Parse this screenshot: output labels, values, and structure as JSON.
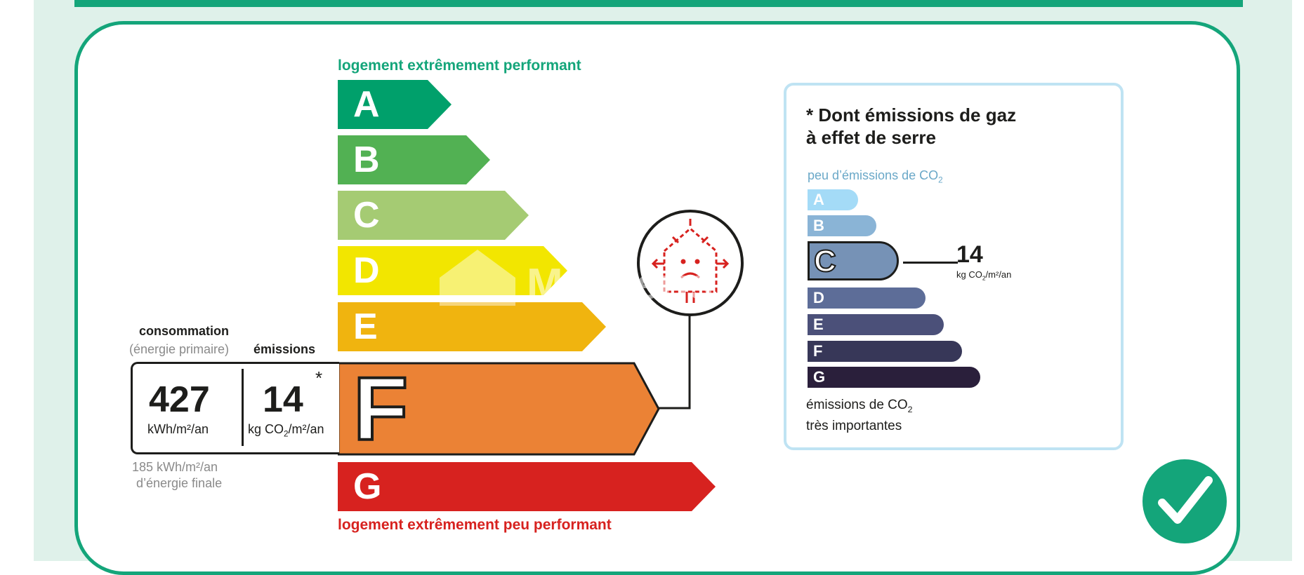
{
  "dpe": {
    "top_caption": "logement extrêmement performant",
    "bottom_caption": "logement extrêmement peu performant",
    "classes": [
      {
        "letter": "A",
        "color": "#00a06b"
      },
      {
        "letter": "B",
        "color": "#52b153"
      },
      {
        "letter": "C",
        "color": "#a5cb73"
      },
      {
        "letter": "D",
        "color": "#f2e600"
      },
      {
        "letter": "E",
        "color": "#f0b40f"
      },
      {
        "letter": "F",
        "color": "#eb8235"
      },
      {
        "letter": "G",
        "color": "#d7221f"
      }
    ],
    "current_class": "F",
    "indicator_icon": "sad-house-icon"
  },
  "consumption": {
    "label": "consommation",
    "sublabel": "(énergie primaire)",
    "value": "427",
    "unit": "kWh/m²/an",
    "final_energy_line1": "185 kWh/m²/an",
    "final_energy_line2": "d’énergie finale"
  },
  "emissions": {
    "label": "émissions",
    "value": "14",
    "asterisk": "*",
    "unit_prefix": "kg CO",
    "unit_sub": "2",
    "unit_suffix": "/m²/an"
  },
  "ges": {
    "title_line1": "* Dont émissions de gaz",
    "title_line2": "à effet de serre",
    "top_caption_prefix": "peu d’émissions de CO",
    "top_caption_sub": "2",
    "bottom_caption_line1_prefix": "émissions de CO",
    "bottom_caption_line1_sub": "2",
    "bottom_caption_line2": "très importantes",
    "classes": [
      {
        "letter": "A",
        "color": "#a4dbf7"
      },
      {
        "letter": "B",
        "color": "#8ab4d6"
      },
      {
        "letter": "C",
        "color": "#7692b6"
      },
      {
        "letter": "D",
        "color": "#5d6d98"
      },
      {
        "letter": "E",
        "color": "#4b5079"
      },
      {
        "letter": "F",
        "color": "#373758"
      },
      {
        "letter": "G",
        "color": "#2a1f3b"
      }
    ],
    "current_class": "C",
    "value": "14",
    "unit_prefix": "kg CO",
    "unit_sub": "2",
    "unit_suffix": "/m²/an"
  },
  "watermark": "M      eris",
  "check_icon": "checkmark-icon",
  "colors": {
    "brand_green": "#14a57a",
    "panel_border": "#bfe3f3",
    "dark": "#1d1d1b"
  }
}
